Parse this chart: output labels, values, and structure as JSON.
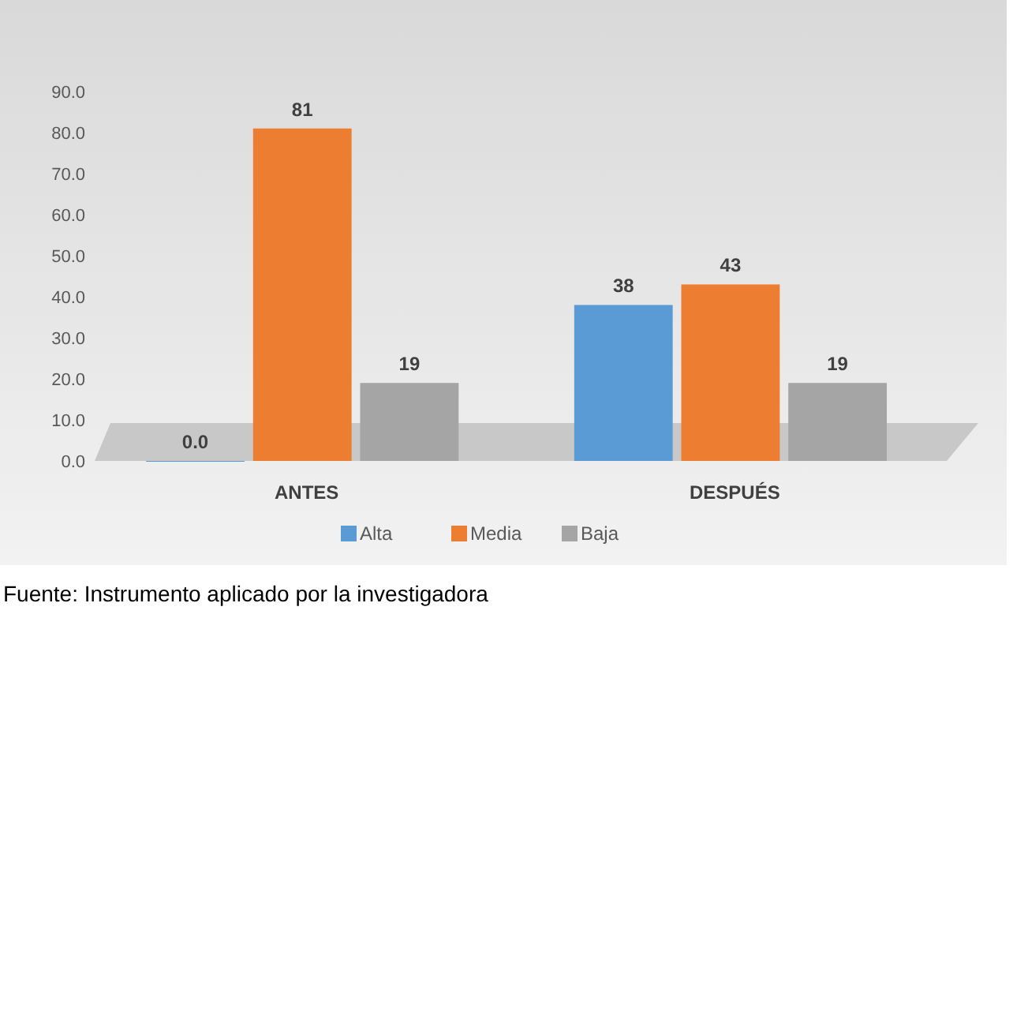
{
  "chart_data": {
    "type": "bar",
    "categories": [
      "ANTES",
      "DESPUÉS"
    ],
    "series": [
      {
        "name": "Alta",
        "color": "#5b9bd5",
        "values": [
          0,
          38
        ],
        "value_labels": [
          "0.0",
          "38"
        ]
      },
      {
        "name": "Media",
        "color": "#ed7d31",
        "values": [
          81,
          43
        ],
        "value_labels": [
          "81",
          "43"
        ]
      },
      {
        "name": "Baja",
        "color": "#a5a5a5",
        "values": [
          19,
          19
        ],
        "value_labels": [
          "19",
          "19"
        ]
      }
    ],
    "ylim": [
      0,
      90
    ],
    "yticks": [
      {
        "value": 0,
        "label": "0.0"
      },
      {
        "value": 10,
        "label": "10.0"
      },
      {
        "value": 20,
        "label": "20.0"
      },
      {
        "value": 30,
        "label": "30.0"
      },
      {
        "value": 40,
        "label": "40.0"
      },
      {
        "value": 50,
        "label": "50.0"
      },
      {
        "value": 60,
        "label": "60.0"
      },
      {
        "value": 70,
        "label": "70.0"
      },
      {
        "value": 80,
        "label": "80.0"
      },
      {
        "value": 90,
        "label": "90.0"
      }
    ],
    "legend": "bottom",
    "annotations": [
      "Fuente: Instrumento aplicado por la investigadora"
    ]
  }
}
